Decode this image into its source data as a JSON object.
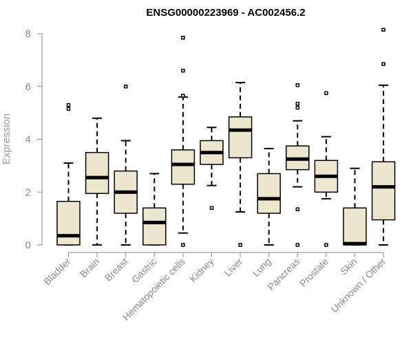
{
  "chart_data": {
    "type": "boxplot",
    "title": "ENSG00000223969 - AC002456.2",
    "ylabel": "Expression",
    "xlabel": "",
    "ylim": [
      0,
      8
    ],
    "yticks": [
      0,
      2,
      4,
      6,
      8
    ],
    "grid": false,
    "legend": "none",
    "box_fill": "#ede6cf",
    "line_color": "#000000",
    "axis_color": "#8a8a8a",
    "categories": [
      "Bladder",
      "Brain",
      "Breast",
      "Gastric",
      "Hematopoietic cells",
      "Kidney",
      "Liver",
      "Lung",
      "Pancreas",
      "Prostate",
      "Skin",
      "Unknown / Other"
    ],
    "boxes": [
      {
        "min": 0,
        "q1": 0,
        "median": 0.35,
        "q3": 1.65,
        "max": 3.1,
        "outliers": [
          5.15,
          5.3
        ]
      },
      {
        "min": 0,
        "q1": 1.95,
        "median": 2.55,
        "q3": 3.5,
        "max": 4.8,
        "outliers": []
      },
      {
        "min": 0,
        "q1": 1.2,
        "median": 2.0,
        "q3": 2.8,
        "max": 3.95,
        "outliers": [
          6.0
        ]
      },
      {
        "min": 0,
        "q1": 0,
        "median": 0.85,
        "q3": 1.4,
        "max": 2.7,
        "outliers": []
      },
      {
        "min": 0.45,
        "q1": 2.3,
        "median": 3.05,
        "q3": 3.6,
        "max": 5.6,
        "outliers": [
          0,
          5.65,
          6.6,
          7.85
        ]
      },
      {
        "min": 2.25,
        "q1": 3.05,
        "median": 3.5,
        "q3": 3.95,
        "max": 4.45,
        "outliers": [
          1.4
        ]
      },
      {
        "min": 1.25,
        "q1": 3.3,
        "median": 4.35,
        "q3": 4.85,
        "max": 6.15,
        "outliers": [
          0
        ]
      },
      {
        "min": 0,
        "q1": 1.2,
        "median": 1.75,
        "q3": 2.7,
        "max": 3.65,
        "outliers": []
      },
      {
        "min": 2.2,
        "q1": 2.85,
        "median": 3.25,
        "q3": 3.75,
        "max": 4.7,
        "outliers": [
          0,
          1.35,
          5.2,
          5.35,
          6.05
        ]
      },
      {
        "min": 1.75,
        "q1": 2.0,
        "median": 2.6,
        "q3": 3.2,
        "max": 4.1,
        "outliers": [
          0,
          5.75
        ]
      },
      {
        "min": 0,
        "q1": 0,
        "median": 0.05,
        "q3": 1.4,
        "max": 2.9,
        "outliers": []
      },
      {
        "min": 0,
        "q1": 0.95,
        "median": 2.2,
        "q3": 3.15,
        "max": 6.05,
        "outliers": [
          6.85,
          8.15
        ]
      }
    ]
  }
}
